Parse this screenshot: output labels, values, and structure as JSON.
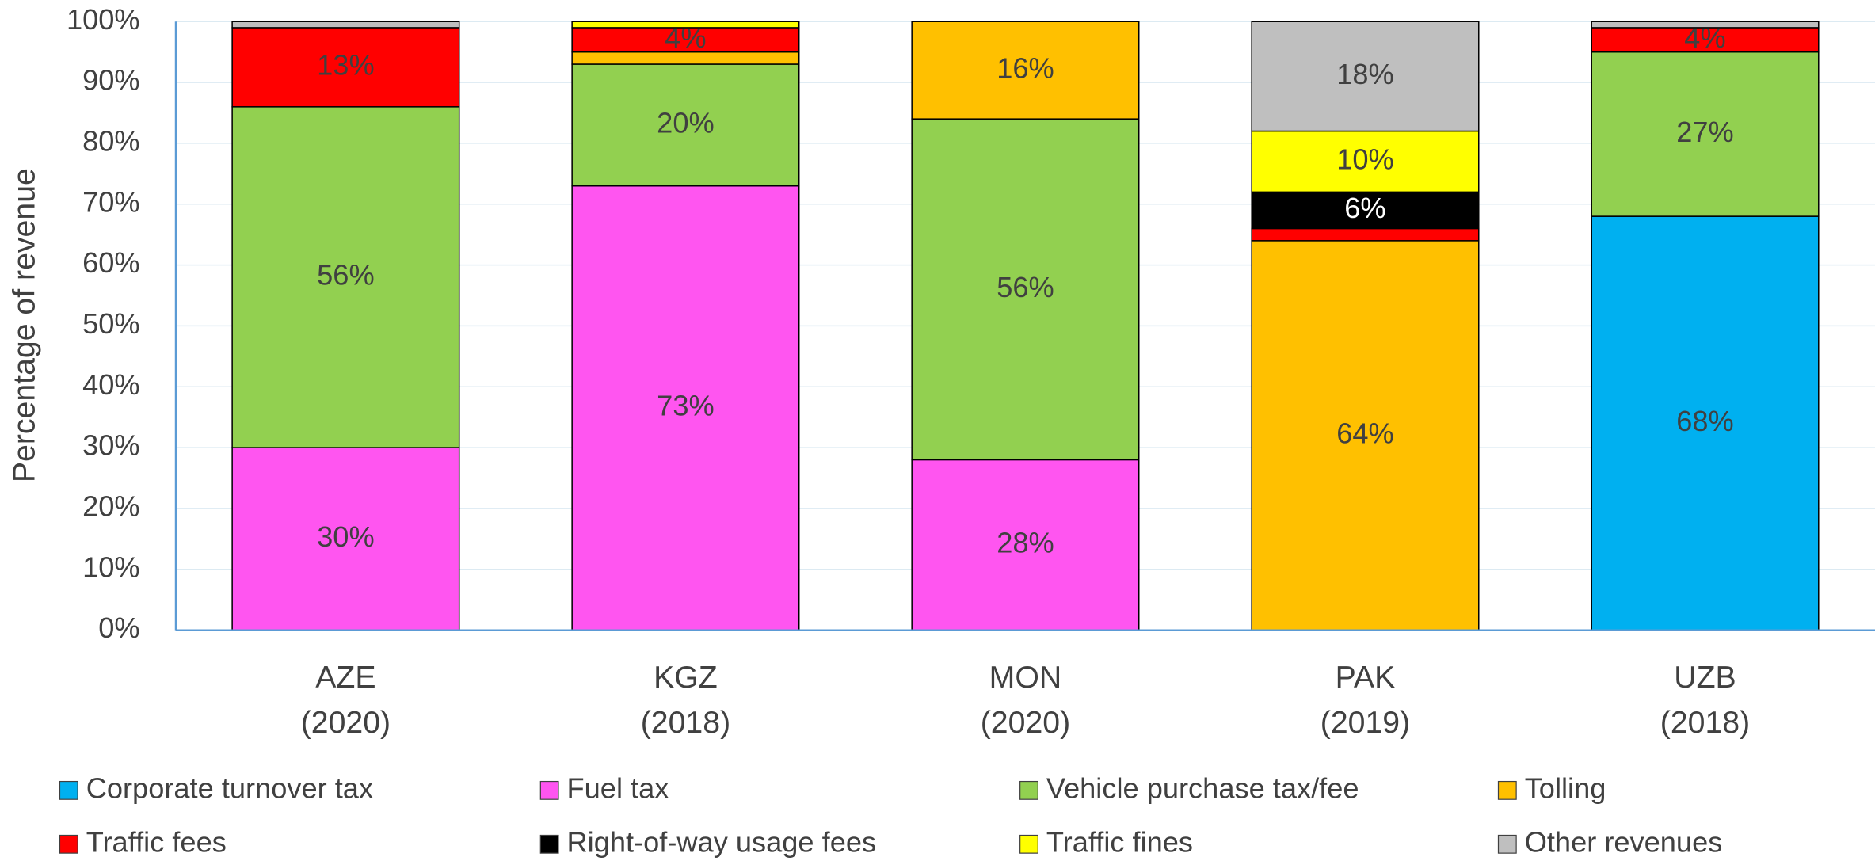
{
  "chart_data": {
    "type": "stacked-bar",
    "y_axis_label": "Percentage of revenue",
    "categories": [
      [
        "AZE",
        "(2020)"
      ],
      [
        "KGZ",
        "(2018)"
      ],
      [
        "MON",
        "(2020)"
      ],
      [
        "PAK",
        "(2019)"
      ],
      [
        "UZB",
        "(2018)"
      ]
    ],
    "ylim": [
      0,
      100
    ],
    "yticks": [
      {
        "value": 0,
        "label": "0%"
      },
      {
        "value": 10,
        "label": "10%"
      },
      {
        "value": 20,
        "label": "20%"
      },
      {
        "value": 30,
        "label": "30%"
      },
      {
        "value": 40,
        "label": "40%"
      },
      {
        "value": 50,
        "label": "50%"
      },
      {
        "value": 60,
        "label": "60%"
      },
      {
        "value": 70,
        "label": "70%"
      },
      {
        "value": 80,
        "label": "80%"
      },
      {
        "value": 90,
        "label": "90%"
      },
      {
        "value": 100,
        "label": "100%"
      }
    ],
    "grid": true,
    "legend": "bottom",
    "series": [
      {
        "name": "Corporate turnover tax",
        "color": "#00B0F0",
        "values": [
          0,
          0,
          0,
          0,
          68
        ],
        "value_labels": [
          null,
          null,
          null,
          null,
          "68%"
        ]
      },
      {
        "name": "Fuel tax",
        "color": "#FF55F0",
        "values": [
          30,
          73,
          28,
          0,
          0
        ],
        "value_labels": [
          "30%",
          "73%",
          "28%",
          null,
          null
        ]
      },
      {
        "name": "Vehicle purchase tax/fee",
        "color": "#92D050",
        "values": [
          56,
          20,
          56,
          0,
          27
        ],
        "value_labels": [
          "56%",
          "20%",
          "56%",
          null,
          "27%"
        ]
      },
      {
        "name": "Tolling",
        "color": "#FFC000",
        "values": [
          0,
          2,
          16,
          64,
          0
        ],
        "value_labels": [
          null,
          null,
          "16%",
          "64%",
          null
        ]
      },
      {
        "name": "Traffic fees",
        "color": "#FF0000",
        "values": [
          13,
          4,
          0,
          2,
          4
        ],
        "value_labels": [
          "13%",
          "4%",
          null,
          null,
          "4%"
        ]
      },
      {
        "name": "Right-of-way usage fees",
        "color": "#000000",
        "values": [
          0,
          0,
          0,
          6,
          0
        ],
        "value_labels": [
          null,
          null,
          null,
          "6%",
          null
        ]
      },
      {
        "name": "Traffic fines",
        "color": "#FFFF00",
        "values": [
          0,
          1,
          0,
          10,
          0
        ],
        "value_labels": [
          null,
          null,
          null,
          "10%",
          null
        ]
      },
      {
        "name": "Other revenues",
        "color": "#BFBFBF",
        "values": [
          1,
          0,
          0,
          18,
          1
        ],
        "value_labels": [
          null,
          null,
          null,
          "18%",
          null
        ]
      }
    ]
  }
}
